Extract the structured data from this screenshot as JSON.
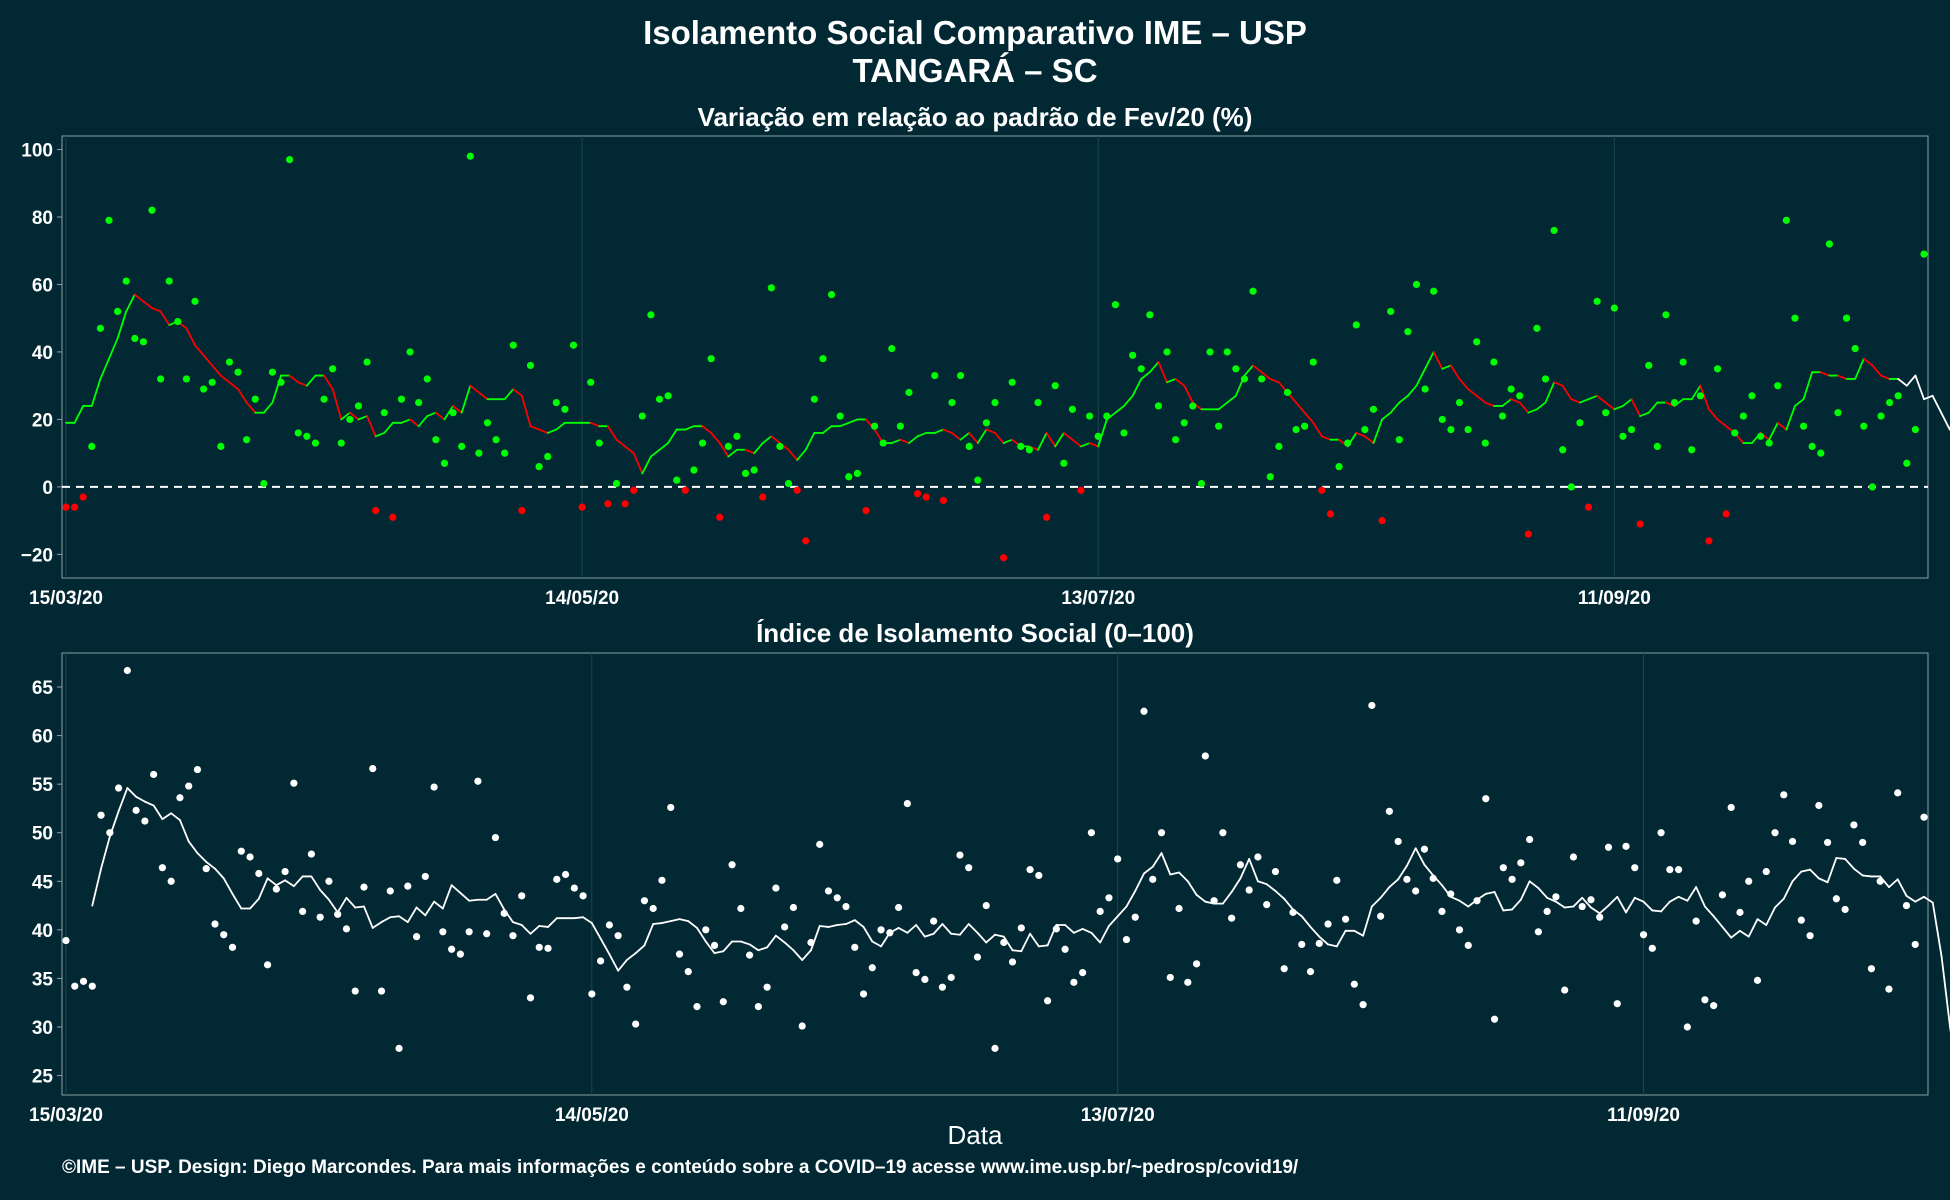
{
  "title_line1": "Isolamento Social Comparativo IME – USP",
  "title_line2": "TANGARÁ – SC",
  "footer": "©IME – USP. Design: Diego Marcondes. Para mais informações e conteúdo sobre a COVID–19 acesse www.ime.usp.br/~pedrosp/covid19/",
  "colors": {
    "background": "#022833",
    "positive": "#00ff00",
    "negative": "#ff0000",
    "index": "#ffffff",
    "grid": "#1d4650",
    "border": "#8aa0a6"
  },
  "chart_data": [
    {
      "type": "scatter",
      "title": "Variação em relação ao padrão de Fev/20 (%)",
      "xlabel": "",
      "ylabel": "",
      "x_start": "15/03/20",
      "x_end": "11/10/20",
      "x_ticks": [
        "15/03/20",
        "14/05/20",
        "13/07/20",
        "11/09/20"
      ],
      "y_ticks": [
        -20,
        0,
        20,
        40,
        60,
        80,
        100
      ],
      "ylim": [
        -27,
        104
      ],
      "reference_line": 0,
      "values": [
        -6,
        -6,
        -3,
        12,
        47,
        79,
        52,
        61,
        44,
        43,
        82,
        32,
        61,
        49,
        32,
        55,
        29,
        31,
        12,
        37,
        34,
        14,
        26,
        1,
        34,
        31,
        97,
        16,
        15,
        13,
        26,
        35,
        13,
        20,
        24,
        37,
        -7,
        22,
        -9,
        26,
        40,
        25,
        32,
        14,
        7,
        22,
        12,
        98,
        10,
        19,
        14,
        10,
        42,
        -7,
        36,
        6,
        9,
        25,
        23,
        42,
        -6,
        31,
        13,
        -5,
        1,
        -5,
        -1,
        21,
        51,
        26,
        27,
        2,
        -1,
        5,
        13,
        38,
        -9,
        12,
        15,
        4,
        5,
        -3,
        59,
        12,
        1,
        -1,
        -16,
        26,
        38,
        57,
        21,
        3,
        4,
        -7,
        18,
        13,
        41,
        18,
        28,
        -2,
        -3,
        33,
        -4,
        25,
        33,
        12,
        2,
        19,
        25,
        -21,
        31,
        12,
        11,
        25,
        -9,
        30,
        7,
        23,
        -1,
        21,
        15,
        21,
        54,
        16,
        39,
        35,
        51,
        24,
        40,
        14,
        19,
        24,
        1,
        40,
        18,
        40,
        35,
        32,
        58,
        32,
        3,
        12,
        28,
        17,
        18,
        37,
        -1,
        -8,
        6,
        13,
        48,
        17,
        23,
        -10,
        52,
        14,
        46,
        60,
        29,
        58,
        20,
        17,
        25,
        17,
        43,
        13,
        37,
        21,
        29,
        27,
        -14,
        47,
        32,
        76,
        11,
        0,
        19,
        -6,
        55,
        22,
        53,
        15,
        17,
        -11,
        36,
        12,
        51,
        25,
        37,
        11,
        27,
        -16,
        35,
        -8,
        16,
        21,
        27,
        15,
        13,
        30,
        79,
        50,
        18,
        12,
        10,
        72,
        22,
        50,
        41,
        18,
        0,
        21,
        25,
        27,
        7,
        17,
        69
      ],
      "moving_average": [
        19,
        19,
        24,
        24,
        32,
        38,
        44,
        52,
        57,
        55,
        53,
        52,
        48,
        49,
        47,
        42,
        39,
        36,
        33,
        31,
        29,
        25,
        22,
        22,
        25,
        33,
        33,
        31,
        30,
        33,
        33,
        29,
        20,
        22,
        20,
        21,
        15,
        16,
        19,
        19,
        20,
        18,
        21,
        22,
        20,
        24,
        22,
        30,
        28,
        26,
        26,
        26,
        29,
        27,
        18,
        17,
        16,
        17,
        19,
        19,
        19,
        19,
        18,
        18,
        14,
        12,
        10,
        4,
        9,
        11,
        13,
        17,
        17,
        18,
        18,
        16,
        13,
        9,
        11,
        11,
        10,
        13,
        15,
        13,
        11,
        8,
        11,
        16,
        16,
        18,
        18,
        19,
        20,
        20,
        17,
        13,
        13,
        14,
        13,
        15,
        16,
        16,
        17,
        16,
        14,
        16,
        13,
        17,
        16,
        13,
        14,
        12,
        12,
        11,
        16,
        12,
        16,
        14,
        12,
        13,
        12,
        20,
        22,
        24,
        27,
        32,
        34,
        37,
        31,
        32,
        30,
        25,
        23,
        23,
        23,
        25,
        27,
        33,
        36,
        34,
        32,
        31,
        28,
        25,
        22,
        19,
        15,
        14,
        14,
        12,
        16,
        15,
        13,
        20,
        22,
        25,
        27,
        30,
        35,
        40,
        35,
        36,
        32,
        29,
        27,
        25,
        24,
        24,
        26,
        25,
        22,
        23,
        25,
        31,
        30,
        26,
        25,
        26,
        27,
        25,
        23,
        24,
        26,
        21,
        22,
        25,
        25,
        24,
        26,
        26,
        30,
        23,
        20,
        18,
        16,
        13,
        13,
        16,
        14,
        19,
        17,
        24,
        26,
        34,
        34,
        33,
        33,
        32,
        32,
        38,
        36,
        33,
        32,
        32,
        30,
        33,
        26,
        27,
        22,
        17,
        25
      ],
      "ma_tail_white_from": 214
    },
    {
      "type": "scatter",
      "title": "Índice de Isolamento Social (0–100)",
      "xlabel": "Data",
      "ylabel": "",
      "x_start": "15/03/20",
      "x_end": "11/10/20",
      "x_ticks": [
        "15/03/20",
        "14/05/20",
        "13/07/20",
        "11/09/20"
      ],
      "y_ticks": [
        25,
        30,
        35,
        40,
        45,
        50,
        55,
        60,
        65
      ],
      "ylim": [
        23,
        68.5
      ],
      "values": [
        38.9,
        34.2,
        34.7,
        34.2,
        51.8,
        50,
        54.6,
        66.7,
        52.3,
        51.2,
        56,
        46.4,
        45,
        53.6,
        54.8,
        56.5,
        46.3,
        40.6,
        39.5,
        38.2,
        48.1,
        47.5,
        45.8,
        36.4,
        44.2,
        46,
        55.1,
        41.9,
        47.8,
        41.3,
        45,
        41.6,
        40.1,
        33.7,
        44.4,
        56.6,
        33.7,
        44,
        27.8,
        44.5,
        39.3,
        45.5,
        54.7,
        39.8,
        38,
        37.5,
        39.8,
        55.3,
        39.6,
        49.5,
        41.7,
        39.4,
        43.5,
        33,
        38.2,
        38.1,
        45.2,
        45.7,
        44.3,
        43.5,
        33.4,
        36.8,
        40.5,
        39.4,
        34.1,
        30.3,
        43,
        42.2,
        45.1,
        52.6,
        37.5,
        35.7,
        32.1,
        40,
        38.4,
        32.6,
        46.7,
        42.2,
        37.4,
        32.1,
        34.1,
        44.3,
        40.3,
        42.3,
        30.1,
        38.7,
        48.8,
        44,
        43.3,
        42.4,
        38.2,
        33.4,
        36.1,
        40,
        39.7,
        42.3,
        53,
        35.6,
        34.9,
        40.9,
        34.1,
        35.1,
        47.7,
        46.4,
        37.2,
        42.5,
        27.8,
        38.7,
        36.7,
        40.2,
        46.2,
        45.6,
        32.7,
        40.1,
        38,
        34.6,
        35.6,
        50,
        41.9,
        43.3,
        47.3,
        39,
        41.3,
        62.5,
        45.2,
        50,
        35.1,
        42.2,
        34.6,
        36.5,
        57.9,
        43,
        50,
        41.2,
        46.7,
        44.1,
        47.5,
        42.6,
        46,
        36,
        41.8,
        38.5,
        35.7,
        38.6,
        40.6,
        45.1,
        41.1,
        34.4,
        32.3,
        63.1,
        41.4,
        52.2,
        49.1,
        45.2,
        44,
        48.3,
        45.3,
        41.9,
        43.7,
        40,
        38.4,
        43,
        53.5,
        30.8,
        46.4,
        45.2,
        46.9,
        49.3,
        39.8,
        41.9,
        43.4,
        33.8,
        47.5,
        42.4,
        43.1,
        41.3,
        48.5,
        32.4,
        48.6,
        46.4,
        39.5,
        38.1,
        50,
        46.2,
        46.2,
        30,
        40.9,
        32.8,
        32.2,
        43.6,
        52.6,
        41.8,
        45,
        34.8,
        46,
        50,
        53.9,
        49.1,
        41,
        39.4,
        52.8,
        49,
        43.2,
        42.1,
        50.8,
        49,
        36,
        45,
        33.9,
        54.1,
        42.5,
        38.5,
        51.6
      ],
      "moving_average": [
        null,
        null,
        null,
        42.5,
        46.3,
        49.6,
        52.2,
        54.6,
        53.7,
        53.2,
        52.8,
        51.4,
        52,
        51.3,
        49.1,
        47.9,
        47,
        46.3,
        45.3,
        43.7,
        42.2,
        42.2,
        43.2,
        45.3,
        44.6,
        45.1,
        44.5,
        45.5,
        45.5,
        44.1,
        43.1,
        41.8,
        43.3,
        42.3,
        42.4,
        40.2,
        40.8,
        41.3,
        41.4,
        40.8,
        42.3,
        41.5,
        42.9,
        42.2,
        44.6,
        43.8,
        43,
        43.1,
        43.1,
        43.7,
        42.1,
        40.8,
        40.5,
        39.6,
        40.4,
        40.3,
        41.2,
        41.2,
        41.2,
        41.3,
        40.7,
        39.1,
        37.5,
        35.8,
        36.9,
        37.6,
        38.4,
        40.6,
        40.7,
        40.9,
        41.1,
        40.9,
        40.2,
        38.8,
        37.6,
        37.8,
        38.8,
        38.8,
        38.5,
        37.9,
        38.2,
        39.4,
        38.7,
        37.9,
        36.9,
        37.9,
        40.4,
        40.3,
        40.5,
        40.6,
        41,
        40.3,
        38.8,
        38.3,
        39.7,
        40.2,
        39.7,
        40.5,
        39.3,
        39.6,
        40.6,
        39.6,
        39.5,
        40.6,
        39.7,
        38.7,
        39.5,
        39.3,
        37.9,
        37.8,
        39.6,
        38.3,
        38.4,
        40.5,
        40.5,
        39.7,
        40.1,
        39.7,
        38.7,
        40.4,
        41.4,
        42.4,
        44,
        45.8,
        46.5,
        47.9,
        45.7,
        45.9,
        45,
        43.6,
        42.9,
        42.7,
        42.7,
        43.9,
        45.3,
        47.3,
        45,
        44.7,
        44,
        43.2,
        42.1,
        41.4,
        40.3,
        39.3,
        38.5,
        38.3,
        39.9,
        39.9,
        39.4,
        42.4,
        43.3,
        44.4,
        45.2,
        46.6,
        48.4,
        46.7,
        45.6,
        44.6,
        43.4,
        43,
        42.4,
        43.1,
        43.7,
        43.9,
        42,
        42.1,
        43.1,
        45,
        44.3,
        43.3,
        42.9,
        42.3,
        42.4,
        43.3,
        42.3,
        41.7,
        42.5,
        43.4,
        41.8,
        43.3,
        42.9,
        42,
        41.9,
        42.9,
        43.4,
        43,
        44.4,
        42.4,
        41.4,
        40.3,
        39.2,
        39.9,
        39.3,
        41.1,
        40.5,
        42.3,
        43.2,
        45,
        46,
        46.2,
        45.3,
        44.9,
        47.4,
        47.3,
        46.3,
        45.6,
        45.5,
        45.5,
        44.4,
        45.2,
        43.5,
        42.9,
        43.4,
        42.8,
        37.3,
        29.8,
        24.2
      ]
    }
  ]
}
